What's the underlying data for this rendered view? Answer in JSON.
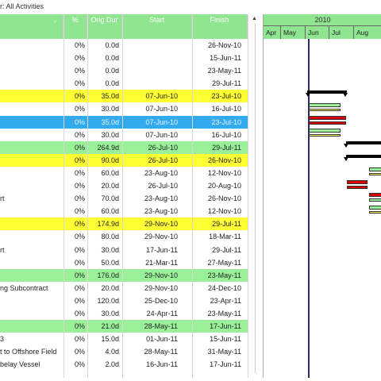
{
  "filter_label": "r: All Activities",
  "columns": {
    "pct": "%",
    "dur": "Orig Dur",
    "start": "Start",
    "finish": "Finish"
  },
  "timeline": {
    "year": "2010",
    "months": [
      "Apr",
      "May",
      "Jun",
      "Jul",
      "Aug"
    ]
  },
  "rows": [
    {
      "name": "",
      "pct": "0%",
      "dur": "0.0d",
      "start": "",
      "finish": "26-Nov-10",
      "style": ""
    },
    {
      "name": "",
      "pct": "0%",
      "dur": "0.0d",
      "start": "",
      "finish": "15-Jun-11",
      "style": ""
    },
    {
      "name": "",
      "pct": "0%",
      "dur": "0.0d",
      "start": "",
      "finish": "23-May-11",
      "style": ""
    },
    {
      "name": "",
      "pct": "0%",
      "dur": "0.0d",
      "start": "",
      "finish": "29-Jul-11",
      "style": ""
    },
    {
      "name": "",
      "pct": "0%",
      "dur": "35.0d",
      "start": "07-Jun-10",
      "finish": "23-Jul-10",
      "style": "yellow"
    },
    {
      "name": "",
      "pct": "0%",
      "dur": "30.0d",
      "start": "07-Jun-10",
      "finish": "16-Jul-10",
      "style": ""
    },
    {
      "name": "",
      "pct": "0%",
      "dur": "35.0d",
      "start": "07-Jun-10",
      "finish": "23-Jul-10",
      "style": "blue"
    },
    {
      "name": "",
      "pct": "0%",
      "dur": "30.0d",
      "start": "07-Jun-10",
      "finish": "16-Jul-10",
      "style": ""
    },
    {
      "name": "",
      "pct": "0%",
      "dur": "264.9d",
      "start": "26-Jul-10",
      "finish": "29-Jul-11",
      "style": "green"
    },
    {
      "name": "",
      "pct": "0%",
      "dur": "90.0d",
      "start": "26-Jul-10",
      "finish": "26-Nov-10",
      "style": "yellow"
    },
    {
      "name": "",
      "pct": "0%",
      "dur": "60.0d",
      "start": "23-Aug-10",
      "finish": "12-Nov-10",
      "style": ""
    },
    {
      "name": "",
      "pct": "0%",
      "dur": "20.0d",
      "start": "26-Jul-10",
      "finish": "20-Aug-10",
      "style": ""
    },
    {
      "name": "rt",
      "pct": "0%",
      "dur": "70.0d",
      "start": "23-Aug-10",
      "finish": "26-Nov-10",
      "style": ""
    },
    {
      "name": "",
      "pct": "0%",
      "dur": "60.0d",
      "start": "23-Aug-10",
      "finish": "12-Nov-10",
      "style": ""
    },
    {
      "name": "",
      "pct": "0%",
      "dur": "174.9d",
      "start": "29-Nov-10",
      "finish": "29-Jul-11",
      "style": "yellow"
    },
    {
      "name": "",
      "pct": "0%",
      "dur": "80.0d",
      "start": "29-Nov-10",
      "finish": "18-Mar-11",
      "style": ""
    },
    {
      "name": "rt",
      "pct": "0%",
      "dur": "30.0d",
      "start": "17-Jun-11",
      "finish": "29-Jul-11",
      "style": ""
    },
    {
      "name": "",
      "pct": "0%",
      "dur": "50.0d",
      "start": "21-Mar-11",
      "finish": "27-May-11",
      "style": ""
    },
    {
      "name": "",
      "pct": "0%",
      "dur": "176.0d",
      "start": "29-Nov-10",
      "finish": "23-May-11",
      "style": "green"
    },
    {
      "name": "ng Subcontract",
      "pct": "0%",
      "dur": "20.0d",
      "start": "29-Nov-10",
      "finish": "24-Dec-10",
      "style": ""
    },
    {
      "name": "",
      "pct": "0%",
      "dur": "120.0d",
      "start": "25-Dec-10",
      "finish": "23-Apr-11",
      "style": ""
    },
    {
      "name": "",
      "pct": "0%",
      "dur": "30.0d",
      "start": "24-Apr-11",
      "finish": "23-May-11",
      "style": ""
    },
    {
      "name": "",
      "pct": "0%",
      "dur": "21.0d",
      "start": "28-May-11",
      "finish": "17-Jun-11",
      "style": "green"
    },
    {
      "name": "3",
      "pct": "0%",
      "dur": "15.0d",
      "start": "01-Jun-11",
      "finish": "15-Jun-11",
      "style": ""
    },
    {
      "name": "t to Offshore Field",
      "pct": "0%",
      "dur": "4.0d",
      "start": "28-May-11",
      "finish": "31-May-11",
      "style": ""
    },
    {
      "name": "belay Vessel",
      "pct": "0%",
      "dur": "2.0d",
      "start": "16-Jun-11",
      "finish": "17-Jun-11",
      "style": ""
    }
  ],
  "colors": {
    "header": "#90e690",
    "yellow": "#ffff33",
    "green": "#99f099",
    "blue": "#33aaee",
    "bar_green": "#99f099",
    "bar_red": "#dd0000",
    "bar_yellow": "#ffff55"
  }
}
